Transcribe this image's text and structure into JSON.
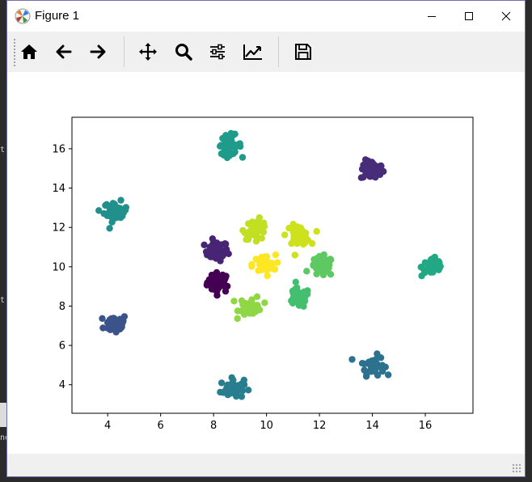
{
  "window": {
    "title": "Figure 1"
  },
  "background": {
    "left_texts": [
      "t",
      "t",
      "ne"
    ]
  },
  "toolbar": {
    "tools": [
      {
        "name": "home-icon"
      },
      {
        "name": "back-arrow-icon"
      },
      {
        "name": "forward-arrow-icon"
      },
      {
        "name": "pan-icon"
      },
      {
        "name": "zoom-icon"
      },
      {
        "name": "configure-subplots-icon"
      },
      {
        "name": "edit-axis-icon"
      },
      {
        "name": "save-icon"
      }
    ]
  },
  "chart_data": {
    "type": "scatter",
    "title": "",
    "xlabel": "",
    "ylabel": "",
    "xlim": [
      2.65,
      17.8
    ],
    "ylim": [
      2.55,
      17.6
    ],
    "xticks": [
      4,
      6,
      8,
      10,
      12,
      14,
      16
    ],
    "yticks": [
      4,
      6,
      8,
      10,
      12,
      14,
      16
    ],
    "grid": false,
    "legend": "none",
    "series": [
      {
        "center": [
          8.2,
          9.2
        ],
        "color": "#440154",
        "count": 40
      },
      {
        "center": [
          8.1,
          10.8
        ],
        "color": "#482475",
        "count": 40
      },
      {
        "center": [
          14.0,
          14.9
        ],
        "color": "#472c7a",
        "count": 40
      },
      {
        "center": [
          4.3,
          7.1
        ],
        "color": "#3b528b",
        "count": 40
      },
      {
        "center": [
          14.0,
          5.0
        ],
        "color": "#2c728e",
        "count": 40
      },
      {
        "center": [
          8.7,
          3.8
        ],
        "color": "#287d8e",
        "count": 40
      },
      {
        "center": [
          4.3,
          12.8
        ],
        "color": "#21908d",
        "count": 40
      },
      {
        "center": [
          8.6,
          16.2
        ],
        "color": "#1e9b8a",
        "count": 40
      },
      {
        "center": [
          16.3,
          10.0
        ],
        "color": "#22a884",
        "count": 40
      },
      {
        "center": [
          11.2,
          8.4
        ],
        "color": "#44bf70",
        "count": 40
      },
      {
        "center": [
          12.1,
          10.0
        ],
        "color": "#5ec962",
        "count": 40
      },
      {
        "center": [
          9.4,
          8.0
        ],
        "color": "#8fd744",
        "count": 40
      },
      {
        "center": [
          9.6,
          11.9
        ],
        "color": "#c2df23",
        "count": 40
      },
      {
        "center": [
          11.2,
          11.6
        ],
        "color": "#cde11d",
        "count": 40
      },
      {
        "center": [
          9.9,
          10.1
        ],
        "color": "#fde725",
        "count": 40
      }
    ]
  }
}
